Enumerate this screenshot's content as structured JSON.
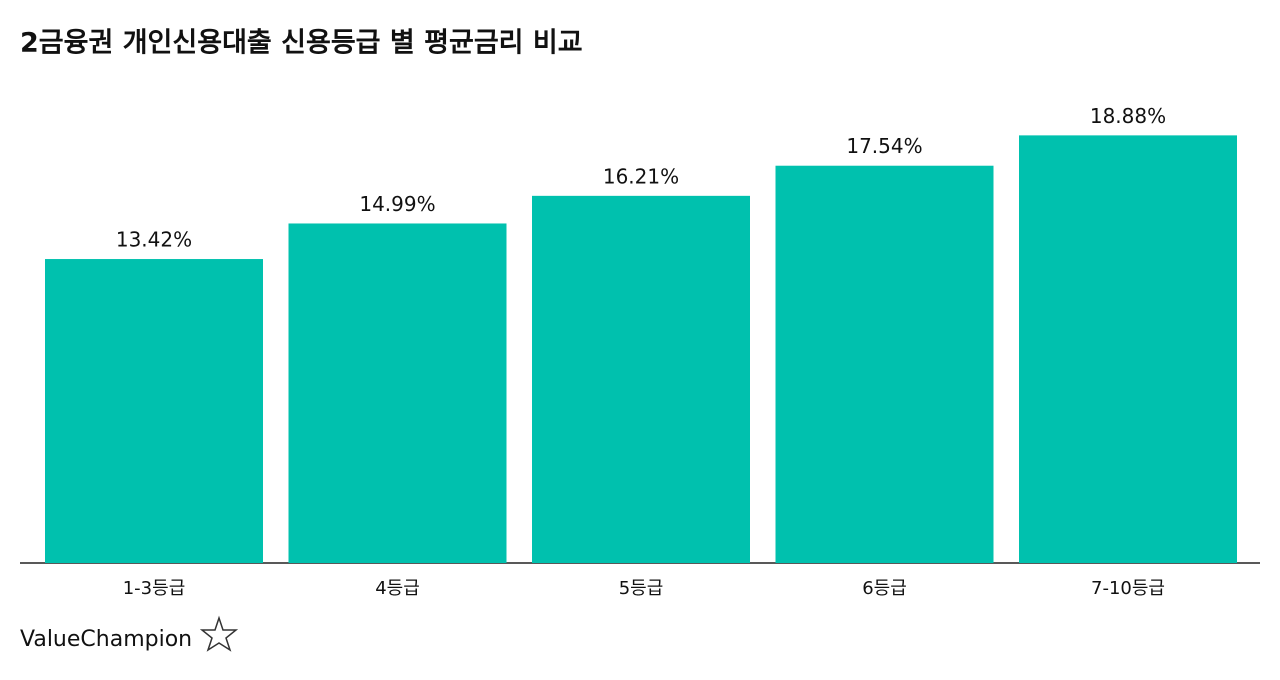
{
  "chart_data": {
    "type": "bar",
    "title": "2금융권 개인신용대출 신용등급 별 평균금리 비교",
    "categories": [
      "1-3등급",
      "4등급",
      "5등급",
      "6등급",
      "7-10등급"
    ],
    "values": [
      13.42,
      14.99,
      16.21,
      17.54,
      18.88
    ],
    "value_labels": [
      "13.42%",
      "14.99%",
      "16.21%",
      "17.54%",
      "18.88%"
    ],
    "color": "#00c1ae"
  },
  "logo": "ValueChampion"
}
